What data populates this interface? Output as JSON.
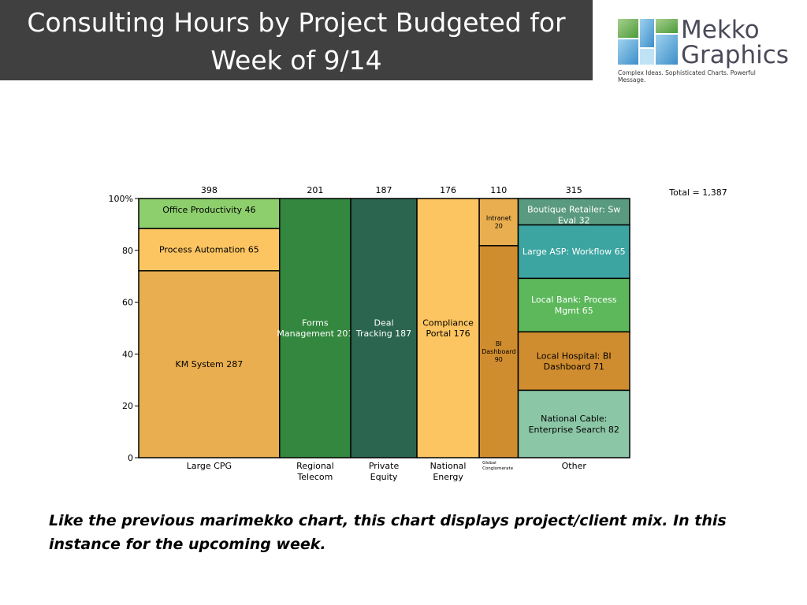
{
  "title": "Consulting Hours by Project Budgeted for Week of 9/14",
  "logo": {
    "word1": "Mekko",
    "word2": "Graphics",
    "tagline": "Complex Ideas. Sophisticated Charts. Powerful Message."
  },
  "caption": "Like the previous marimekko chart, this chart displays project/client mix.  In this instance for the upcoming week.",
  "chart_data": {
    "type": "marimekko",
    "total_label": "Total = 1,387",
    "y_axis": {
      "range": [
        0,
        100
      ],
      "ticks": [
        "0",
        "20",
        "40",
        "60",
        "80",
        "100%"
      ],
      "tick_values": [
        0,
        20,
        40,
        60,
        80,
        100
      ]
    },
    "columns": [
      {
        "category": "Large CPG",
        "total": 398,
        "total_label": "398",
        "segments": [
          {
            "label": "KM System 287",
            "value": 287,
            "color": "#E9AE4F"
          },
          {
            "label": "Process Automation 65",
            "value": 65,
            "color": "#FDC561"
          },
          {
            "label": "Office Productivity 46",
            "value": 46,
            "color": "#8ECF6D"
          }
        ]
      },
      {
        "category": "Regional Telecom",
        "total": 201,
        "total_label": "201",
        "segments": [
          {
            "label": "Forms Management 201",
            "value": 201,
            "color": "#33873E"
          }
        ]
      },
      {
        "category": "Private Equity",
        "total": 187,
        "total_label": "187",
        "segments": [
          {
            "label": "Deal Tracking 187",
            "value": 187,
            "color": "#2B6550"
          }
        ]
      },
      {
        "category": "National Energy",
        "total": 176,
        "total_label": "176",
        "segments": [
          {
            "label": "Compliance Portal 176",
            "value": 176,
            "color": "#FDC561"
          }
        ]
      },
      {
        "category": "Global Conglomerate",
        "total": 110,
        "total_label": "110",
        "segments": [
          {
            "label": "BI Dashboard 90",
            "value": 90,
            "color": "#D08D2F"
          },
          {
            "label": "Intranet 20",
            "value": 20,
            "color": "#E9AE4F"
          }
        ]
      },
      {
        "category": "Other",
        "total": 315,
        "total_label": "315",
        "segments": [
          {
            "label": "National Cable: Enterprise Search 82",
            "value": 82,
            "color": "#8BC6A6"
          },
          {
            "label": "Local Hospital: BI Dashboard 71",
            "value": 71,
            "color": "#D08D2F"
          },
          {
            "label": "Local Bank: Process Mgmt 65",
            "value": 65,
            "color": "#5CB85B"
          },
          {
            "label": "Large ASP: Workflow 65",
            "value": 65,
            "color": "#3DA5A1"
          },
          {
            "label": "Boutique Retailer: Sw Eval 32",
            "value": 32,
            "color": "#5A9A81"
          }
        ]
      }
    ]
  }
}
